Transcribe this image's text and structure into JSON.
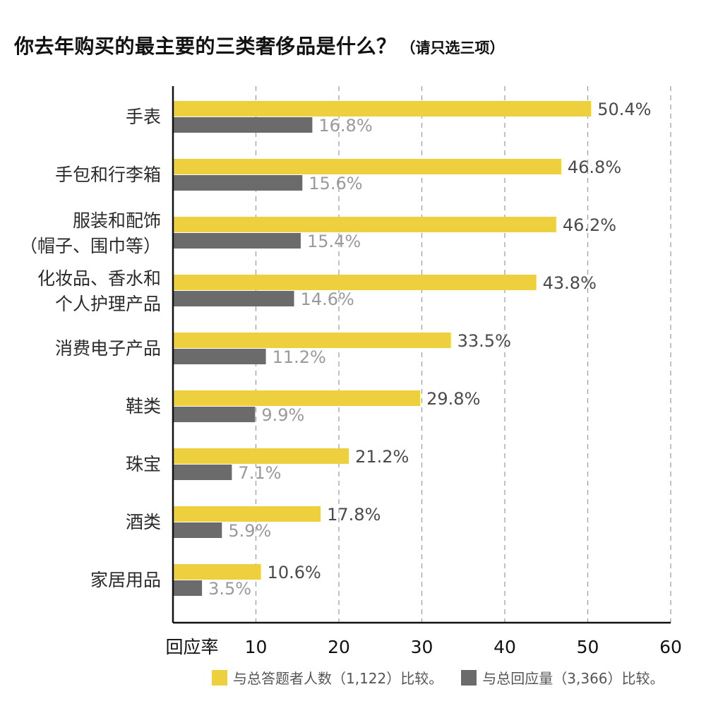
{
  "title": {
    "main": "你去年购买的最主要的三类奢侈品是什么？",
    "sub": "（请只选三项）"
  },
  "colors": {
    "series_a": "#eecf3e",
    "series_b": "#6b6b6b"
  },
  "chart_data": {
    "type": "bar",
    "orientation": "horizontal",
    "title": "你去年购买的最主要的三类奢侈品是什么？（请只选三项）",
    "xlabel": "回应率",
    "ylabel": "",
    "xlim": [
      0,
      60
    ],
    "xticks": [
      "10",
      "20",
      "30",
      "40",
      "50",
      "60"
    ],
    "grid": true,
    "legend_position": "bottom",
    "categories": [
      [
        "手表"
      ],
      [
        "手包和行李箱"
      ],
      [
        "服装和配饰",
        "（帽子、围巾等）"
      ],
      [
        "化妆品、香水和",
        "个人护理产品"
      ],
      [
        "消费电子产品"
      ],
      [
        "鞋类"
      ],
      [
        "珠宝"
      ],
      [
        "酒类"
      ],
      [
        "家居用品"
      ]
    ],
    "series": [
      {
        "name": "与总答题者人数（1,122）比较。",
        "color": "#eecf3e",
        "values": [
          50.4,
          46.8,
          46.2,
          43.8,
          33.5,
          29.8,
          21.2,
          17.8,
          10.6
        ],
        "labels": [
          "50.4%",
          "46.8%",
          "46.2%",
          "43.8%",
          "33.5%",
          "29.8%",
          "21.2%",
          "17.8%",
          "10.6%"
        ]
      },
      {
        "name": "与总回应量（3,366）比较。",
        "color": "#6b6b6b",
        "values": [
          16.8,
          15.6,
          15.4,
          14.6,
          11.2,
          9.9,
          7.1,
          5.9,
          3.5
        ],
        "labels": [
          "16.8%",
          "15.6%",
          "15.4%",
          "14.6%",
          "11.2%",
          "9.9%",
          "7.1%",
          "5.9%",
          "3.5%"
        ]
      }
    ]
  }
}
